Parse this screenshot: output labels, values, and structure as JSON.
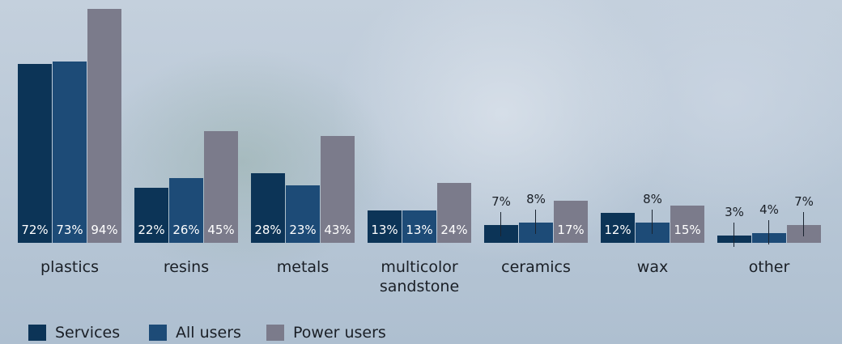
{
  "chart_data": {
    "type": "bar",
    "categories": [
      "plastics",
      "resins",
      "metals",
      "multicolor sandstone",
      "ceramics",
      "wax",
      "other"
    ],
    "series": [
      {
        "name": "Services",
        "color": "#0c3457",
        "values": [
          72,
          22,
          28,
          13,
          7,
          12,
          3
        ],
        "value_labels": [
          "72%",
          "22%",
          "28%",
          "13%",
          "7%",
          "12%",
          "3%"
        ]
      },
      {
        "name": "All users",
        "color": "#1d4b77",
        "values": [
          73,
          26,
          23,
          13,
          8,
          8,
          4
        ],
        "value_labels": [
          "73%",
          "26%",
          "23%",
          "13%",
          "8%",
          "8%",
          "4%"
        ]
      },
      {
        "name": "Power users",
        "color": "#7b7b8b",
        "values": [
          94,
          45,
          43,
          24,
          17,
          15,
          7
        ],
        "value_labels": [
          "94%",
          "45%",
          "43%",
          "24%",
          "17%",
          "15%",
          "7%"
        ]
      }
    ]
  }
}
